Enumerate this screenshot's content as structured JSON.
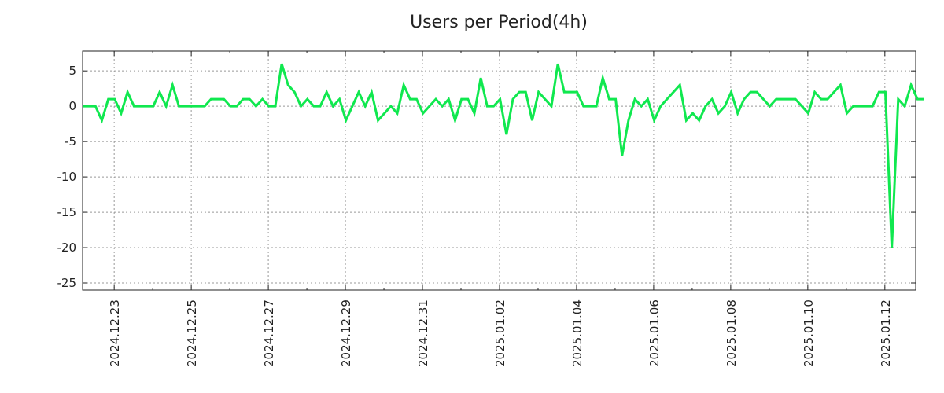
{
  "chart_data": {
    "type": "line",
    "title": "Users per Period(4h)",
    "xlabel": "",
    "ylabel": "",
    "x_start": "2024-12-22T04:00",
    "step_hours": 4,
    "xlim_days_from_first_tick": [
      -0.82,
      20.8
    ],
    "ylim": [
      -26,
      7.8
    ],
    "yticks": [
      5,
      0,
      -5,
      -10,
      -15,
      -20,
      -25
    ],
    "xticks": [
      "2024.12.23",
      "2024.12.25",
      "2024.12.27",
      "2024.12.29",
      "2024.12.31",
      "2025.01.02",
      "2025.01.04",
      "2025.01.06",
      "2025.01.08",
      "2025.01.10",
      "2025.01.12"
    ],
    "grid": true,
    "color": "#10e84f",
    "series": [
      {
        "name": "Users",
        "values": [
          0,
          0,
          0,
          -2,
          1,
          1,
          -1,
          2,
          0,
          0,
          0,
          0,
          2,
          0,
          3,
          0,
          0,
          0,
          0,
          0,
          1,
          1,
          1,
          0,
          0,
          1,
          1,
          0,
          1,
          0,
          0,
          6,
          3,
          2,
          0,
          1,
          0,
          0,
          2,
          0,
          1,
          -2,
          0,
          2,
          0,
          2,
          -2,
          -1,
          0,
          -1,
          3,
          1,
          1,
          -1,
          0,
          1,
          0,
          1,
          -2,
          1,
          1,
          -1,
          4,
          0,
          0,
          1,
          -4,
          1,
          2,
          2,
          -2,
          2,
          1,
          0,
          6,
          2,
          2,
          2,
          0,
          0,
          0,
          4,
          1,
          1,
          -7,
          -2,
          1,
          0,
          1,
          -2,
          0,
          1,
          2,
          3,
          -2,
          -1,
          -2,
          0,
          1,
          -1,
          0,
          2,
          -1,
          1,
          2,
          2,
          1,
          0,
          1,
          1,
          1,
          1,
          0,
          -1,
          2,
          1,
          1,
          2,
          3,
          -1,
          0,
          0,
          0,
          0,
          2,
          2,
          -20,
          1,
          0,
          3,
          1,
          1
        ]
      }
    ]
  }
}
